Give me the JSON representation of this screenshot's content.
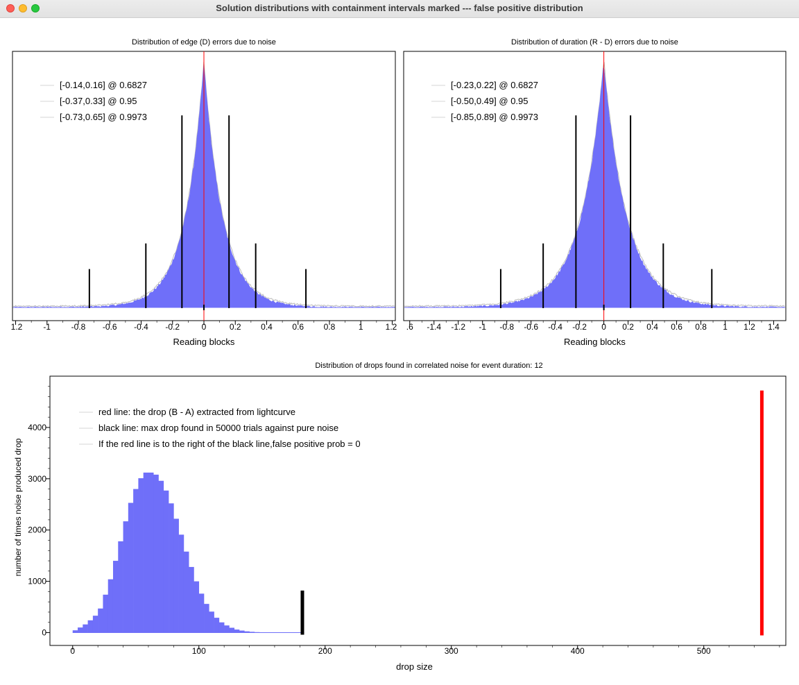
{
  "window": {
    "title": "Solution distributions with containment intervals marked --- false positive distribution"
  },
  "colors": {
    "hist_fill": "#6f6ff9",
    "hist_outline": "#bbbbbb",
    "red_line": "#ff0000",
    "black_line": "#000000",
    "legend_swatch": "#d4d4d4"
  },
  "chart_data": [
    {
      "id": "edge",
      "type": "histogram",
      "title": "Distribution of edge (D) errors due to noise",
      "xlabel": "Reading blocks",
      "ylabel": "",
      "xlim": [
        -1.22,
        1.22
      ],
      "xticks": [
        "1.2",
        "-1",
        "-0.8",
        "-0.6",
        "-0.4",
        "-0.2",
        "0",
        "0.2",
        "0.4",
        "0.6",
        "0.8",
        "1",
        "1.2"
      ],
      "xtick_values": [
        -1.2,
        -1,
        -0.8,
        -0.6,
        -0.4,
        -0.2,
        0,
        0.2,
        0.4,
        0.6,
        0.8,
        1,
        1.2
      ],
      "distribution": {
        "shape": "laplace",
        "center": 0.0,
        "scale": 0.12,
        "peak_fraction": 0.95
      },
      "center_line": 0.0,
      "interval_lines": [
        {
          "x": -0.14,
          "height_fraction": 0.75
        },
        {
          "x": 0.16,
          "height_fraction": 0.75
        },
        {
          "x": -0.37,
          "height_fraction": 0.25
        },
        {
          "x": 0.33,
          "height_fraction": 0.25
        },
        {
          "x": -0.73,
          "height_fraction": 0.15
        },
        {
          "x": 0.65,
          "height_fraction": 0.15
        }
      ],
      "legend": [
        "[-0.14,0.16] @ 0.6827",
        "[-0.37,0.33] @ 0.95",
        "[-0.73,0.65] @ 0.9973"
      ],
      "grid": false,
      "legend_position": "top-left"
    },
    {
      "id": "duration",
      "type": "histogram",
      "title": "Distribution of duration (R - D) errors due to noise",
      "xlabel": "Reading blocks",
      "ylabel": "",
      "xlim": [
        -1.65,
        1.5
      ],
      "xticks": [
        ".6",
        "-1.4",
        "-1.2",
        "-1",
        "-0.8",
        "-0.6",
        "-0.4",
        "-0.2",
        "0",
        "0.2",
        "0.4",
        "0.6",
        "0.8",
        "1",
        "1.2",
        "1.4"
      ],
      "xtick_values": [
        -1.6,
        -1.4,
        -1.2,
        -1,
        -0.8,
        -0.6,
        -0.4,
        -0.2,
        0,
        0.2,
        0.4,
        0.6,
        0.8,
        1,
        1.2,
        1.4
      ],
      "distribution": {
        "shape": "laplace",
        "center": 0.0,
        "scale": 0.19,
        "peak_fraction": 0.95
      },
      "center_line": 0.0,
      "interval_lines": [
        {
          "x": -0.23,
          "height_fraction": 0.75
        },
        {
          "x": 0.22,
          "height_fraction": 0.75
        },
        {
          "x": -0.5,
          "height_fraction": 0.25
        },
        {
          "x": 0.49,
          "height_fraction": 0.25
        },
        {
          "x": -0.85,
          "height_fraction": 0.15
        },
        {
          "x": 0.89,
          "height_fraction": 0.15
        }
      ],
      "legend": [
        "[-0.23,0.22] @ 0.6827",
        "[-0.50,0.49] @ 0.95",
        "[-0.85,0.89] @ 0.9973"
      ],
      "grid": false,
      "legend_position": "top-left"
    },
    {
      "id": "drops",
      "type": "bar",
      "title": "Distribution of drops found in correlated noise for event duration: 12",
      "xlabel": "drop size",
      "ylabel": "number of times noise produced drop",
      "xlim": [
        -18,
        565
      ],
      "ylim": [
        -250,
        5000
      ],
      "xticks": [
        "0",
        "100",
        "200",
        "300",
        "400",
        "500"
      ],
      "xtick_values": [
        0,
        100,
        200,
        300,
        400,
        500
      ],
      "yticks": [
        "0",
        "1000",
        "2000",
        "3000",
        "4000"
      ],
      "ytick_values": [
        0,
        1000,
        2000,
        3000,
        4000
      ],
      "bin_width": 4,
      "bin_starts": [
        0,
        4,
        8,
        12,
        16,
        20,
        24,
        28,
        32,
        36,
        40,
        44,
        48,
        52,
        56,
        60,
        64,
        68,
        72,
        76,
        80,
        84,
        88,
        92,
        96,
        100,
        104,
        108,
        112,
        116,
        120,
        124,
        128,
        132,
        136,
        140,
        144,
        148,
        152,
        156,
        160,
        164,
        168,
        172,
        176,
        180
      ],
      "counts": [
        45,
        100,
        160,
        240,
        330,
        470,
        740,
        1040,
        1400,
        1780,
        2170,
        2530,
        2800,
        3010,
        3120,
        3120,
        3080,
        2960,
        2770,
        2520,
        2220,
        1910,
        1580,
        1280,
        1000,
        760,
        560,
        410,
        290,
        200,
        140,
        95,
        60,
        40,
        25,
        16,
        10,
        6,
        4,
        3,
        2,
        2,
        1,
        1,
        1,
        1
      ],
      "red_line": {
        "x": 546,
        "top": 4720,
        "label": "red line: the drop (B - A) extracted from lightcurve"
      },
      "black_line": {
        "x": 182,
        "top": 820,
        "label": "black line: max drop found in 50000 trials against pure noise"
      },
      "legend": [
        "red line: the drop (B - A) extracted from lightcurve",
        "black line: max drop found in 50000 trials against pure noise",
        "If the red line is to the right of the black line,false positive prob = 0"
      ],
      "grid": false,
      "legend_position": "top-left"
    }
  ]
}
